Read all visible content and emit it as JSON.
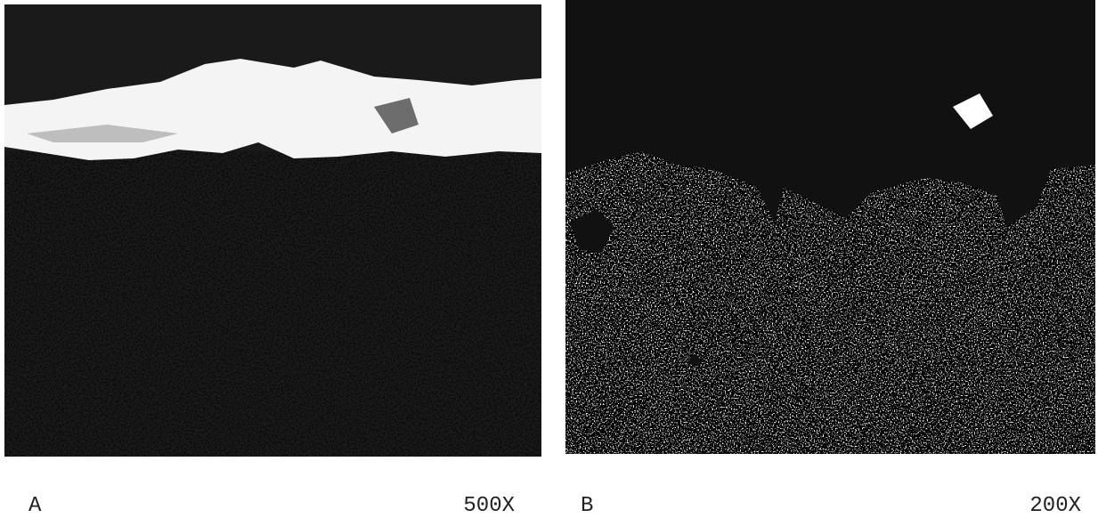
{
  "panels": [
    {
      "label": "A",
      "magnification": "500X"
    },
    {
      "label": "B",
      "magnification": "200X"
    }
  ]
}
